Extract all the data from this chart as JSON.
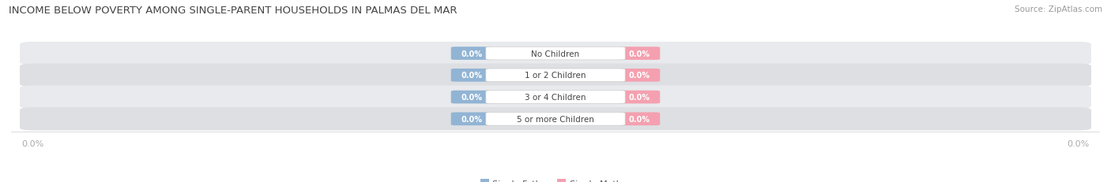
{
  "title": "INCOME BELOW POVERTY AMONG SINGLE-PARENT HOUSEHOLDS IN PALMAS DEL MAR",
  "source": "Source: ZipAtlas.com",
  "categories": [
    "No Children",
    "1 or 2 Children",
    "3 or 4 Children",
    "5 or more Children"
  ],
  "father_values": [
    0.0,
    0.0,
    0.0,
    0.0
  ],
  "mother_values": [
    0.0,
    0.0,
    0.0,
    0.0
  ],
  "father_color": "#92b4d4",
  "mother_color": "#f4a0b0",
  "row_bg_color": "#e8eaed",
  "row_bg_color2": "#dddfe3",
  "label_color": "#ffffff",
  "category_color": "#444444",
  "axis_label_color": "#aaaaaa",
  "figsize": [
    14.06,
    2.32
  ],
  "dpi": 100,
  "title_fontsize": 9.5,
  "source_fontsize": 7.5,
  "value_fontsize": 7,
  "category_fontsize": 7.5,
  "legend_fontsize": 8,
  "axis_tick_fontsize": 8,
  "background_color": "#ffffff"
}
